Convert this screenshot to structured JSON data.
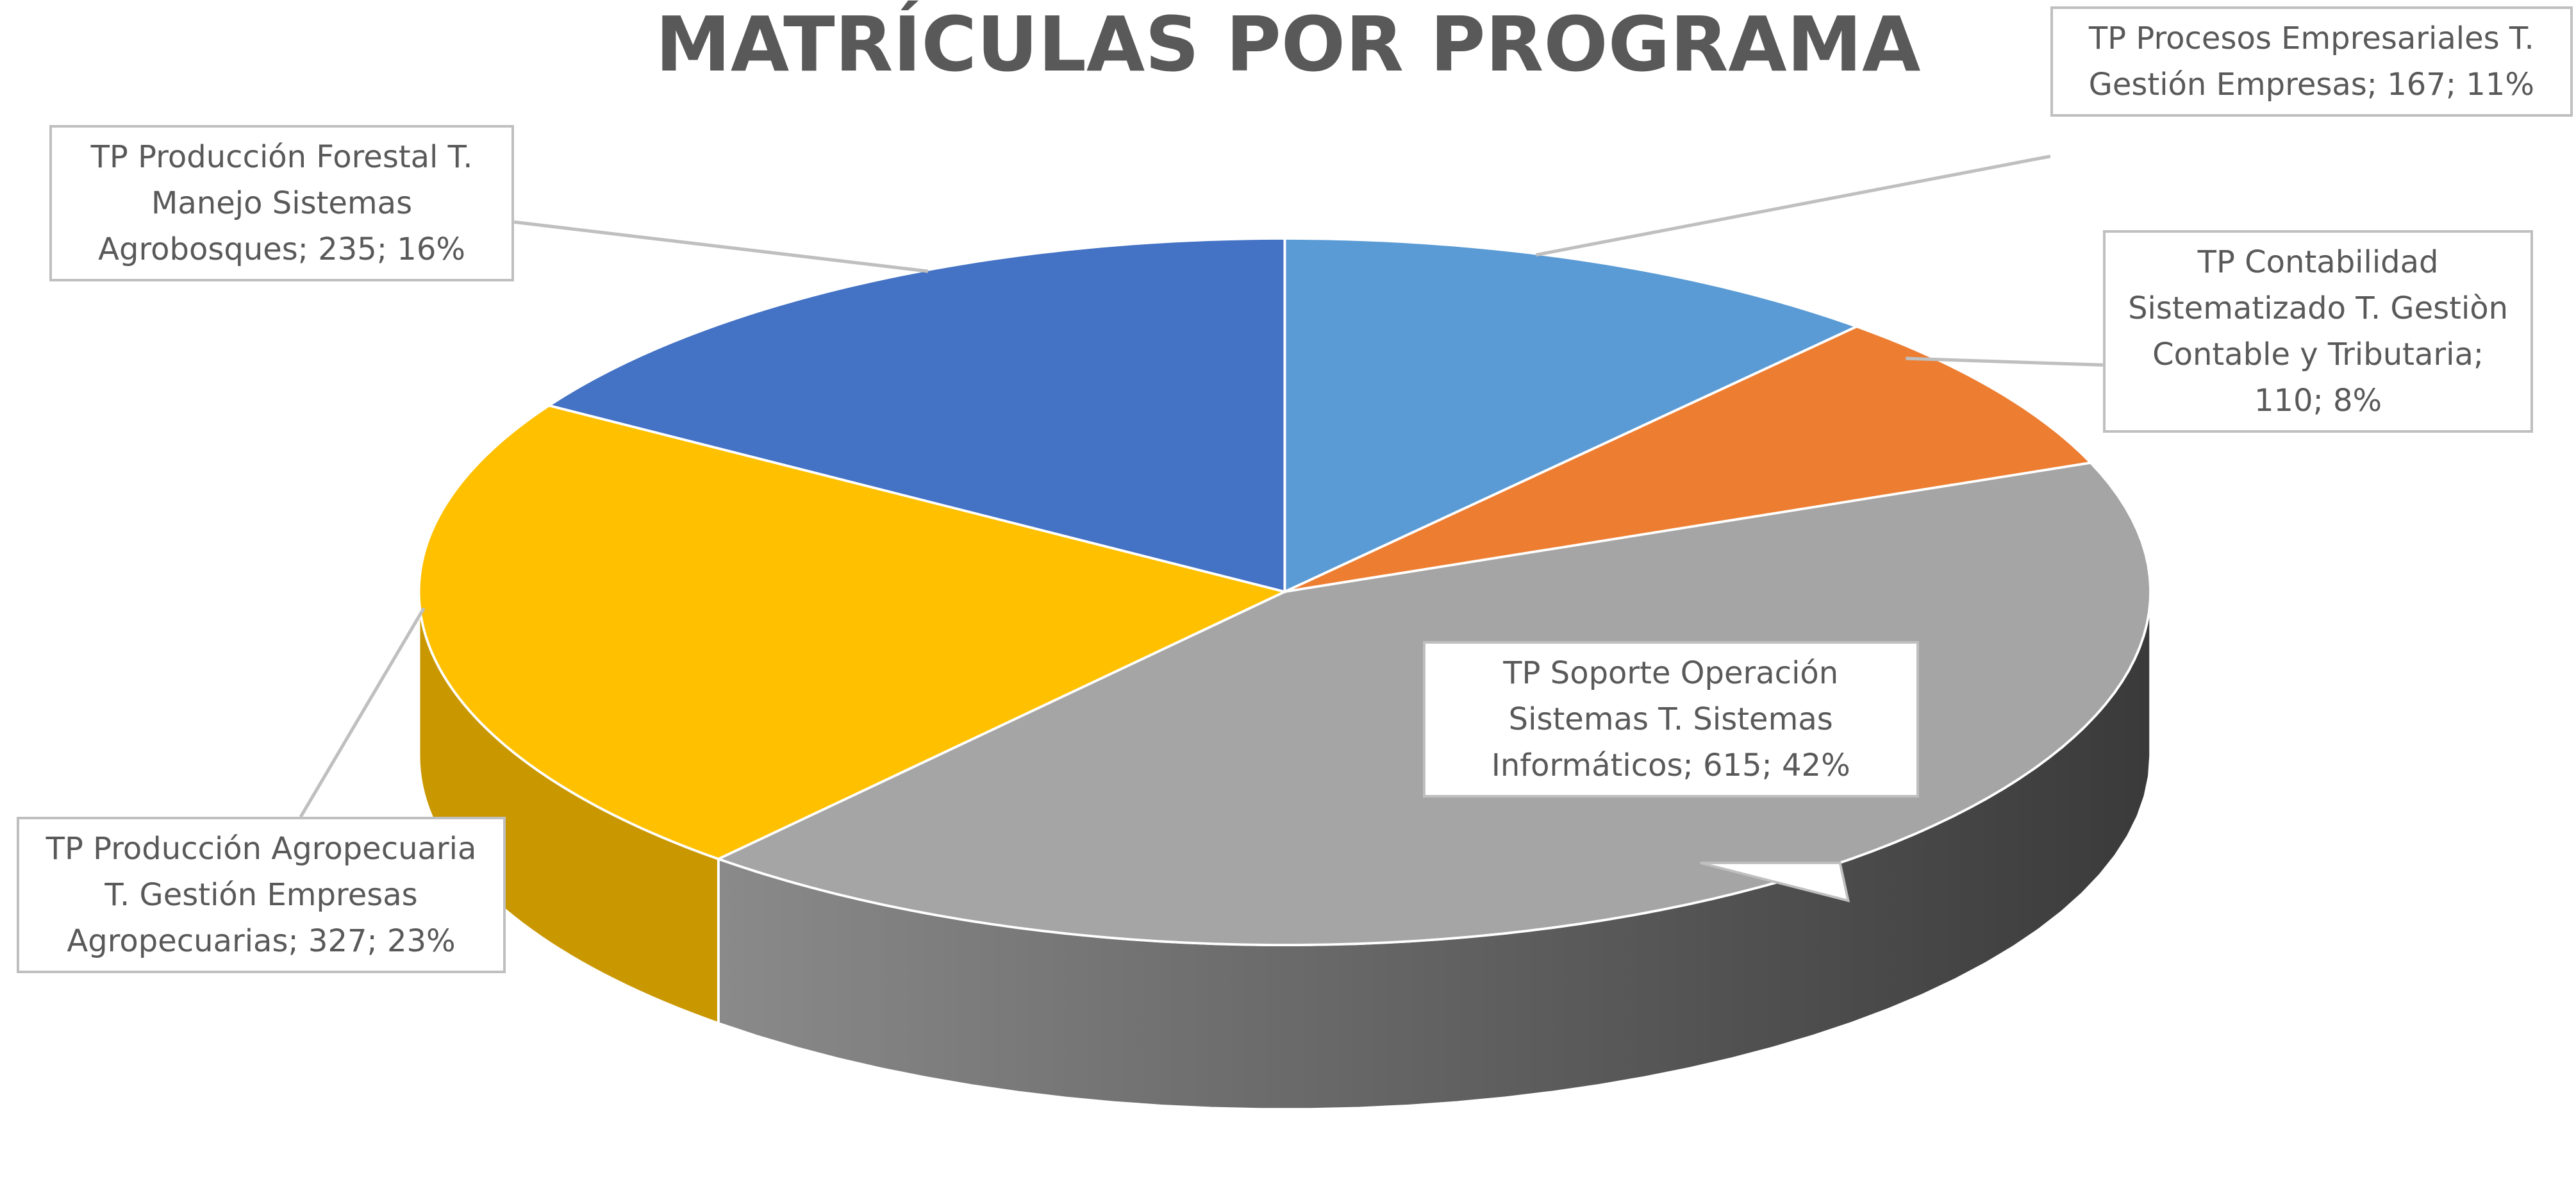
{
  "chart_data": {
    "type": "pie",
    "title": "MATRÍCULAS POR PROGRAMA",
    "values": [
      167,
      110,
      615,
      327,
      235
    ],
    "value_labels": [
      "TP Procesos Empresariales T. Gestión Empresas; 167; 11%",
      "TP Contabilidad Sistematizado T. Gestiòn Contable y Tributaria; 110; 8%",
      "TP Soporte Operación Sistemas T. Sistemas Informáticos; 615; 42%",
      "TP Producción Agropecuaria T. Gestión Empresas Agropecuarias; 327; 23%",
      "TP Producción Forestal T. Manejo Sistemas Agrobosques; 235; 16%"
    ],
    "colors": [
      "#5b9bd5",
      "#ed7d31",
      "#a5a5a5",
      "#ffc000",
      "#4472c4"
    ],
    "side_colors": [
      "#3f78ab",
      "#b85d1f",
      "#555555",
      "#c99700",
      "#2f5597"
    ]
  }
}
